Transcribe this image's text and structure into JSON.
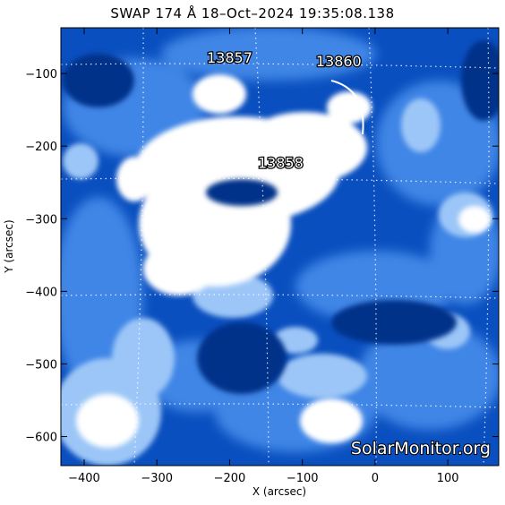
{
  "title": "SWAP 174 Å 18–Oct–2024 19:35:08.138",
  "image": {
    "colors": {
      "background": "#0a4fbf",
      "mid": "#3f86e6",
      "light": "#9cc6f7",
      "bright": "#ffffff",
      "dark": "#06318a"
    }
  },
  "axes": {
    "x": {
      "title": "X (arcsec)",
      "range": [
        -432,
        170
      ],
      "ticks": [
        -400,
        -300,
        -200,
        -100,
        0,
        100
      ],
      "tick_labels": [
        "−400",
        "−300",
        "−200",
        "−100",
        "0",
        "100"
      ]
    },
    "y": {
      "title": "Y (arcsec)",
      "range": [
        -640,
        -37
      ],
      "ticks": [
        -100,
        -200,
        -300,
        -400,
        -500,
        -600
      ],
      "tick_labels": [
        "−100",
        "−200",
        "−300",
        "−400",
        "−500",
        "−600"
      ]
    },
    "grid": "dotted heliographic lines"
  },
  "regions": [
    {
      "label": "13857",
      "x": -200,
      "y": -85
    },
    {
      "label": "13860",
      "x": -50,
      "y": -90
    },
    {
      "label": "13858",
      "x": -130,
      "y": -230
    }
  ],
  "watermark": "SolarMonitor.org"
}
